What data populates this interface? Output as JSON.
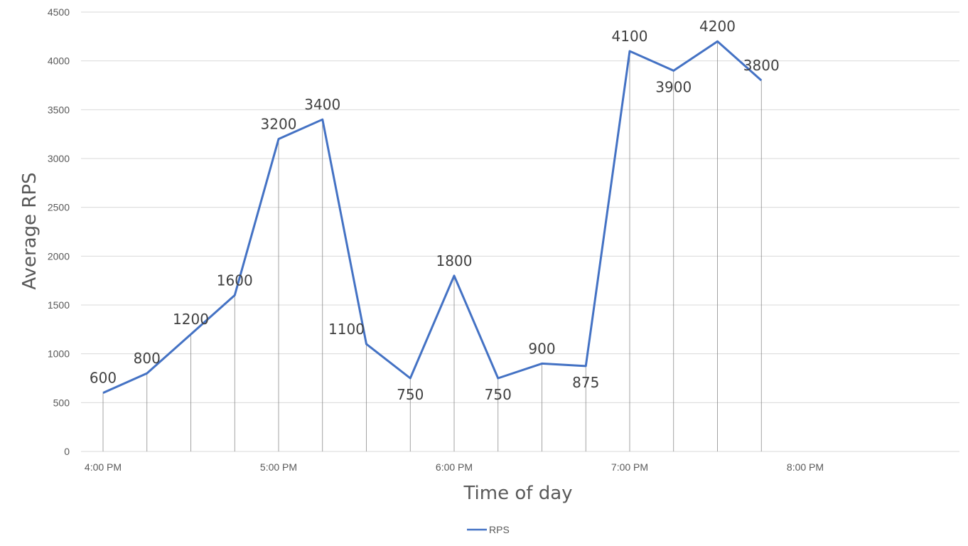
{
  "chart_data": {
    "type": "line",
    "title": "",
    "xlabel": "Time of day",
    "ylabel": "Average RPS",
    "ylim": [
      0,
      4500
    ],
    "yticks": [
      0,
      500,
      1000,
      1500,
      2000,
      2500,
      3000,
      3500,
      4000,
      4500
    ],
    "x_tick_labels": [
      "4:00 PM",
      "5:00 PM",
      "6:00 PM",
      "7:00 PM",
      "8:00 PM"
    ],
    "x_tick_values": [
      "16:00",
      "17:00",
      "18:00",
      "19:00",
      "20:00"
    ],
    "x_range": [
      "16:00",
      "20:00"
    ],
    "grid": "horizontal",
    "drop_lines": true,
    "legend_position": "bottom",
    "series": [
      {
        "name": "RPS",
        "color": "#4472C4",
        "x": [
          "16:00",
          "16:15",
          "16:30",
          "16:45",
          "17:00",
          "17:15",
          "17:30",
          "17:45",
          "18:00",
          "18:15",
          "18:30",
          "18:45",
          "19:00",
          "19:15",
          "19:30",
          "19:45"
        ],
        "values": [
          600,
          800,
          1200,
          1600,
          3200,
          3400,
          1100,
          750,
          1800,
          750,
          900,
          875,
          4100,
          3900,
          4200,
          3800
        ],
        "data_labels": [
          "600",
          "800",
          "1200",
          "1600",
          "3200",
          "3400",
          "1100",
          "750",
          "1800",
          "750",
          "900",
          "875",
          "4100",
          "3900",
          "4200",
          "3800"
        ]
      }
    ]
  }
}
